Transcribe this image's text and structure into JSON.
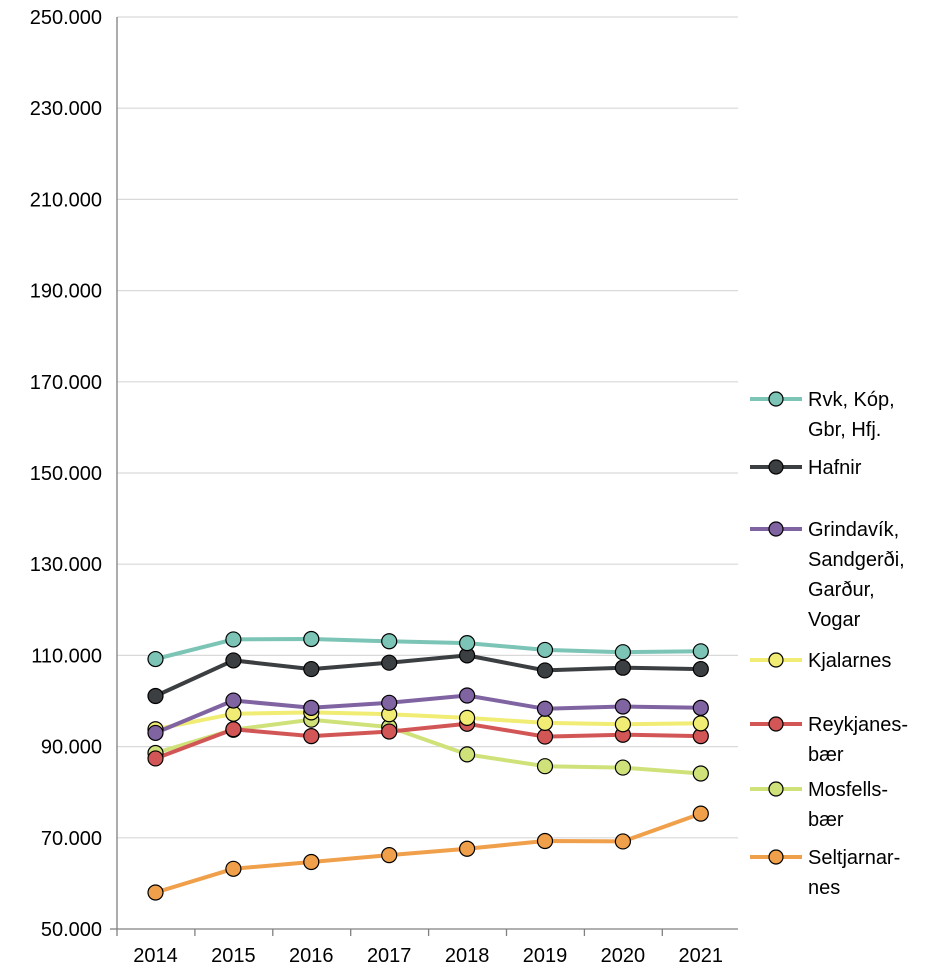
{
  "chart_data": {
    "type": "line",
    "title": "",
    "xlabel": "",
    "ylabel": "",
    "x": [
      "2014",
      "2015",
      "2016",
      "2017",
      "2018",
      "2019",
      "2020",
      "2021"
    ],
    "ylim": [
      50000,
      250000
    ],
    "yticks": [
      50000,
      70000,
      90000,
      110000,
      130000,
      150000,
      170000,
      190000,
      210000,
      230000,
      250000
    ],
    "ytick_labels": [
      "50.000",
      "70.000",
      "90.000",
      "110.000",
      "130.000",
      "150.000",
      "170.000",
      "190.000",
      "210.000",
      "230.000",
      "250.000"
    ],
    "grid": true,
    "legend_position": "right",
    "series": [
      {
        "name_lines": [
          "Rvk, Kóp,",
          "Gbr, Hfj."
        ],
        "color": "#7cc4b6",
        "values": [
          109200,
          113500,
          113600,
          113100,
          112700,
          111200,
          110700,
          110900
        ]
      },
      {
        "name_lines": [
          "Hafnir"
        ],
        "color": "#3c3f42",
        "values": [
          101100,
          108900,
          107000,
          108400,
          110000,
          106700,
          107300,
          107000
        ]
      },
      {
        "name_lines": [
          "Grindavík,",
          "Sandgerði,",
          "Garður,",
          "Vogar"
        ],
        "color": "#8064a2",
        "values": [
          93000,
          100100,
          98500,
          99600,
          101200,
          98300,
          98800,
          98500
        ]
      },
      {
        "name_lines": [
          "Kjalarnes"
        ],
        "color": "#f1ec74",
        "values": [
          93800,
          97200,
          97500,
          97100,
          96300,
          95200,
          94900,
          95100
        ]
      },
      {
        "name_lines": [
          "Reykjanes-",
          "bær"
        ],
        "color": "#d35656",
        "values": [
          87400,
          93800,
          92300,
          93300,
          95000,
          92200,
          92600,
          92300
        ]
      },
      {
        "name_lines": [
          "Mosfells-",
          "bær"
        ],
        "color": "#cfe27a",
        "values": [
          88600,
          93700,
          95900,
          94300,
          88300,
          85700,
          85400,
          84100
        ]
      },
      {
        "name_lines": [
          "Seltjarnar-",
          "nes"
        ],
        "color": "#f0a04b",
        "values": [
          58000,
          63200,
          64700,
          66200,
          67600,
          69300,
          69200,
          75300
        ]
      }
    ]
  }
}
